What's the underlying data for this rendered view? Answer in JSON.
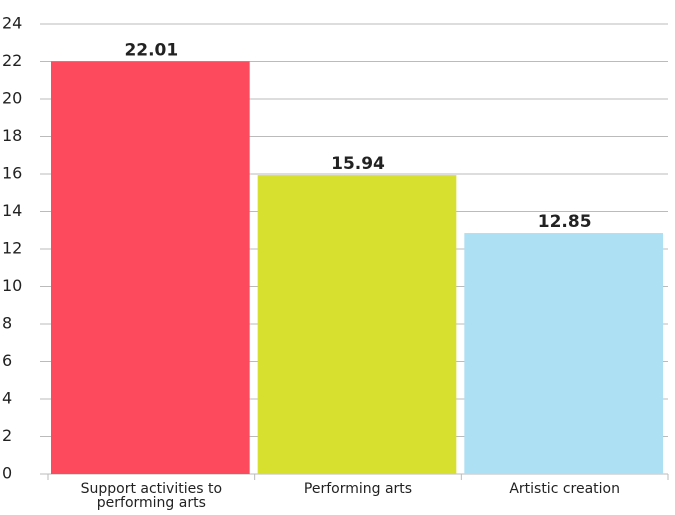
{
  "chart_data": {
    "type": "bar",
    "categories": [
      "Support activities to performing arts",
      "Performing arts",
      "Artistic creation"
    ],
    "values": [
      22.01,
      15.94,
      12.85
    ],
    "colors": [
      "#fd4a5c",
      "#d7df2f",
      "#ade0f2"
    ],
    "ylim": [
      0,
      24
    ],
    "yticks": [
      0,
      2,
      4,
      6,
      8,
      10,
      12,
      14,
      16,
      18,
      20,
      22,
      24
    ],
    "grid": true
  }
}
